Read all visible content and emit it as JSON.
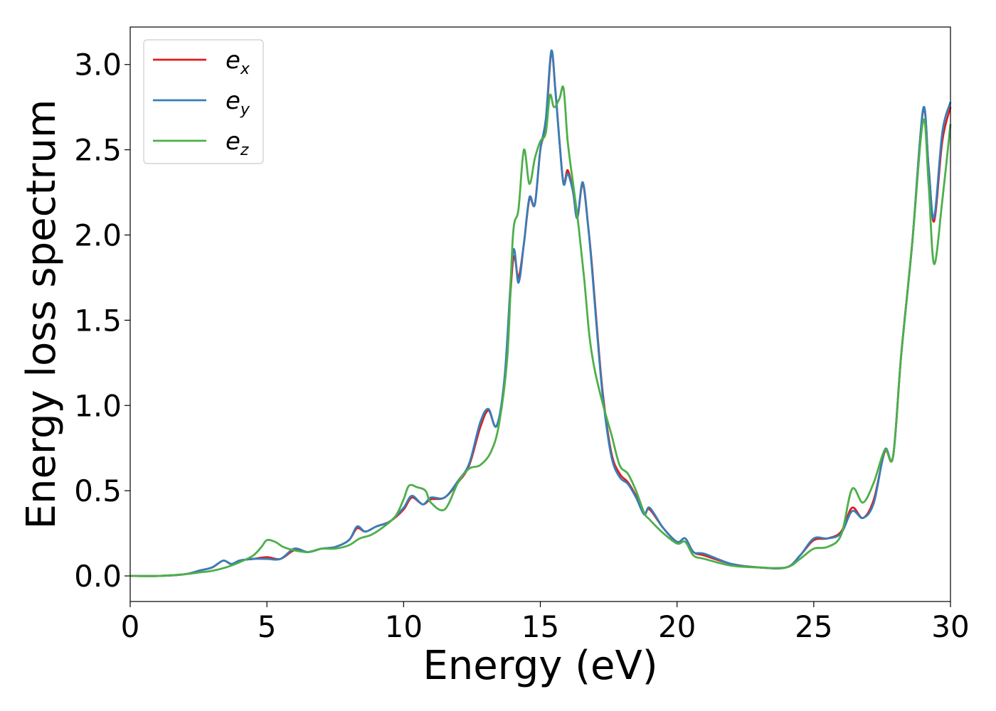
{
  "chart_data": {
    "type": "line",
    "xlabel": "Energy (eV)",
    "ylabel": "Energy loss spectrum",
    "xlim": [
      0,
      30
    ],
    "ylim": [
      -0.15,
      3.22
    ],
    "xticks": [
      0,
      5,
      10,
      15,
      20,
      25,
      30
    ],
    "xtick_labels": [
      "0",
      "5",
      "10",
      "15",
      "20",
      "25",
      "30"
    ],
    "yticks": [
      0.0,
      0.5,
      1.0,
      1.5,
      2.0,
      2.5,
      3.0
    ],
    "ytick_labels": [
      "0.0",
      "0.5",
      "1.0",
      "1.5",
      "2.0",
      "2.5",
      "3.0"
    ],
    "grid": false,
    "legend_position": "top-left",
    "series": [
      {
        "name": "e",
        "subscript": "x",
        "color": "#e41a1c",
        "points": [
          [
            0,
            0
          ],
          [
            1,
            0
          ],
          [
            2,
            0.01
          ],
          [
            2.5,
            0.03
          ],
          [
            3,
            0.05
          ],
          [
            3.4,
            0.09
          ],
          [
            3.7,
            0.07
          ],
          [
            4,
            0.09
          ],
          [
            4.5,
            0.1
          ],
          [
            5,
            0.11
          ],
          [
            5.5,
            0.1
          ],
          [
            6,
            0.15
          ],
          [
            6.5,
            0.14
          ],
          [
            7,
            0.16
          ],
          [
            7.5,
            0.17
          ],
          [
            8,
            0.21
          ],
          [
            8.3,
            0.28
          ],
          [
            8.6,
            0.26
          ],
          [
            9,
            0.29
          ],
          [
            9.5,
            0.32
          ],
          [
            10,
            0.39
          ],
          [
            10.3,
            0.46
          ],
          [
            10.7,
            0.42
          ],
          [
            11,
            0.45
          ],
          [
            11.5,
            0.46
          ],
          [
            12,
            0.55
          ],
          [
            12.4,
            0.65
          ],
          [
            12.8,
            0.87
          ],
          [
            13.1,
            0.97
          ],
          [
            13.4,
            0.88
          ],
          [
            13.7,
            1.15
          ],
          [
            14,
            1.85
          ],
          [
            14.2,
            1.75
          ],
          [
            14.4,
            1.95
          ],
          [
            14.6,
            2.21
          ],
          [
            14.8,
            2.18
          ],
          [
            15,
            2.5
          ],
          [
            15.2,
            2.65
          ],
          [
            15.4,
            3.07
          ],
          [
            15.55,
            2.85
          ],
          [
            15.7,
            2.55
          ],
          [
            15.85,
            2.3
          ],
          [
            16,
            2.38
          ],
          [
            16.2,
            2.25
          ],
          [
            16.35,
            2.1
          ],
          [
            16.55,
            2.3
          ],
          [
            16.75,
            2.05
          ],
          [
            16.9,
            1.8
          ],
          [
            17.1,
            1.4
          ],
          [
            17.3,
            1.05
          ],
          [
            17.6,
            0.72
          ],
          [
            17.9,
            0.6
          ],
          [
            18.2,
            0.55
          ],
          [
            18.5,
            0.47
          ],
          [
            18.8,
            0.37
          ],
          [
            19,
            0.39
          ],
          [
            19.5,
            0.28
          ],
          [
            20,
            0.2
          ],
          [
            20.3,
            0.22
          ],
          [
            20.6,
            0.14
          ],
          [
            21,
            0.12
          ],
          [
            22,
            0.07
          ],
          [
            23,
            0.05
          ],
          [
            24,
            0.05
          ],
          [
            24.5,
            0.12
          ],
          [
            25,
            0.21
          ],
          [
            25.5,
            0.22
          ],
          [
            26,
            0.26
          ],
          [
            26.4,
            0.4
          ],
          [
            26.8,
            0.34
          ],
          [
            27.2,
            0.45
          ],
          [
            27.6,
            0.73
          ],
          [
            27.9,
            0.7
          ],
          [
            28.2,
            1.3
          ],
          [
            28.6,
            1.95
          ],
          [
            29,
            2.73
          ],
          [
            29.2,
            2.4
          ],
          [
            29.4,
            2.08
          ],
          [
            29.7,
            2.55
          ],
          [
            30,
            2.75
          ]
        ]
      },
      {
        "name": "e",
        "subscript": "y",
        "color": "#377eb8",
        "points": [
          [
            0,
            0
          ],
          [
            1,
            0
          ],
          [
            2,
            0.01
          ],
          [
            2.5,
            0.03
          ],
          [
            3,
            0.05
          ],
          [
            3.4,
            0.09
          ],
          [
            3.7,
            0.07
          ],
          [
            4,
            0.09
          ],
          [
            4.5,
            0.1
          ],
          [
            5,
            0.1
          ],
          [
            5.5,
            0.1
          ],
          [
            6,
            0.16
          ],
          [
            6.5,
            0.14
          ],
          [
            7,
            0.16
          ],
          [
            7.5,
            0.17
          ],
          [
            8,
            0.21
          ],
          [
            8.3,
            0.29
          ],
          [
            8.6,
            0.26
          ],
          [
            9,
            0.29
          ],
          [
            9.5,
            0.32
          ],
          [
            10,
            0.4
          ],
          [
            10.3,
            0.47
          ],
          [
            10.7,
            0.42
          ],
          [
            11,
            0.46
          ],
          [
            11.5,
            0.46
          ],
          [
            12,
            0.56
          ],
          [
            12.4,
            0.66
          ],
          [
            12.8,
            0.9
          ],
          [
            13.1,
            0.98
          ],
          [
            13.4,
            0.88
          ],
          [
            13.7,
            1.18
          ],
          [
            14,
            1.9
          ],
          [
            14.2,
            1.72
          ],
          [
            14.4,
            1.95
          ],
          [
            14.6,
            2.22
          ],
          [
            14.8,
            2.18
          ],
          [
            15,
            2.5
          ],
          [
            15.2,
            2.68
          ],
          [
            15.4,
            3.08
          ],
          [
            15.55,
            2.85
          ],
          [
            15.7,
            2.55
          ],
          [
            15.85,
            2.3
          ],
          [
            16,
            2.36
          ],
          [
            16.2,
            2.25
          ],
          [
            16.35,
            2.1
          ],
          [
            16.55,
            2.31
          ],
          [
            16.75,
            2.05
          ],
          [
            16.9,
            1.78
          ],
          [
            17.1,
            1.38
          ],
          [
            17.3,
            1.03
          ],
          [
            17.6,
            0.7
          ],
          [
            17.9,
            0.58
          ],
          [
            18.2,
            0.54
          ],
          [
            18.5,
            0.46
          ],
          [
            18.8,
            0.36
          ],
          [
            19,
            0.4
          ],
          [
            19.5,
            0.28
          ],
          [
            20,
            0.2
          ],
          [
            20.3,
            0.22
          ],
          [
            20.6,
            0.14
          ],
          [
            21,
            0.13
          ],
          [
            22,
            0.07
          ],
          [
            23,
            0.05
          ],
          [
            24,
            0.05
          ],
          [
            24.5,
            0.12
          ],
          [
            25,
            0.22
          ],
          [
            25.5,
            0.22
          ],
          [
            26,
            0.25
          ],
          [
            26.4,
            0.38
          ],
          [
            26.8,
            0.34
          ],
          [
            27.2,
            0.43
          ],
          [
            27.6,
            0.74
          ],
          [
            27.9,
            0.7
          ],
          [
            28.2,
            1.3
          ],
          [
            28.6,
            1.95
          ],
          [
            29,
            2.74
          ],
          [
            29.2,
            2.4
          ],
          [
            29.4,
            2.1
          ],
          [
            29.7,
            2.6
          ],
          [
            30,
            2.78
          ]
        ]
      },
      {
        "name": "e",
        "subscript": "z",
        "color": "#4daf4a",
        "points": [
          [
            0,
            0
          ],
          [
            1,
            0
          ],
          [
            2,
            0.01
          ],
          [
            2.5,
            0.02
          ],
          [
            3,
            0.03
          ],
          [
            3.5,
            0.05
          ],
          [
            4,
            0.08
          ],
          [
            4.5,
            0.12
          ],
          [
            4.8,
            0.17
          ],
          [
            5,
            0.21
          ],
          [
            5.3,
            0.2
          ],
          [
            5.6,
            0.17
          ],
          [
            6,
            0.15
          ],
          [
            6.5,
            0.14
          ],
          [
            7,
            0.16
          ],
          [
            7.5,
            0.16
          ],
          [
            8,
            0.18
          ],
          [
            8.4,
            0.22
          ],
          [
            8.8,
            0.24
          ],
          [
            9.2,
            0.28
          ],
          [
            9.7,
            0.35
          ],
          [
            10,
            0.45
          ],
          [
            10.2,
            0.53
          ],
          [
            10.5,
            0.52
          ],
          [
            10.8,
            0.5
          ],
          [
            11,
            0.43
          ],
          [
            11.5,
            0.39
          ],
          [
            12,
            0.55
          ],
          [
            12.4,
            0.63
          ],
          [
            12.8,
            0.65
          ],
          [
            13.2,
            0.73
          ],
          [
            13.5,
            0.9
          ],
          [
            13.8,
            1.3
          ],
          [
            14,
            2.0
          ],
          [
            14.2,
            2.15
          ],
          [
            14.4,
            2.5
          ],
          [
            14.6,
            2.3
          ],
          [
            14.8,
            2.45
          ],
          [
            15,
            2.55
          ],
          [
            15.2,
            2.6
          ],
          [
            15.35,
            2.82
          ],
          [
            15.5,
            2.75
          ],
          [
            15.7,
            2.8
          ],
          [
            15.85,
            2.86
          ],
          [
            16,
            2.55
          ],
          [
            16.2,
            2.3
          ],
          [
            16.4,
            2.05
          ],
          [
            16.6,
            1.75
          ],
          [
            16.8,
            1.4
          ],
          [
            17,
            1.2
          ],
          [
            17.3,
            1.0
          ],
          [
            17.6,
            0.83
          ],
          [
            17.9,
            0.65
          ],
          [
            18.2,
            0.6
          ],
          [
            18.5,
            0.5
          ],
          [
            18.8,
            0.37
          ],
          [
            19,
            0.33
          ],
          [
            19.5,
            0.25
          ],
          [
            20,
            0.19
          ],
          [
            20.3,
            0.2
          ],
          [
            20.6,
            0.12
          ],
          [
            21,
            0.1
          ],
          [
            22,
            0.06
          ],
          [
            23,
            0.05
          ],
          [
            24,
            0.05
          ],
          [
            24.5,
            0.1
          ],
          [
            25,
            0.16
          ],
          [
            25.5,
            0.17
          ],
          [
            26,
            0.24
          ],
          [
            26.4,
            0.51
          ],
          [
            26.8,
            0.43
          ],
          [
            27.2,
            0.55
          ],
          [
            27.6,
            0.74
          ],
          [
            27.9,
            0.7
          ],
          [
            28.2,
            1.3
          ],
          [
            28.6,
            1.95
          ],
          [
            29,
            2.67
          ],
          [
            29.2,
            2.3
          ],
          [
            29.4,
            1.83
          ],
          [
            29.7,
            2.2
          ],
          [
            30,
            2.65
          ]
        ]
      }
    ]
  }
}
